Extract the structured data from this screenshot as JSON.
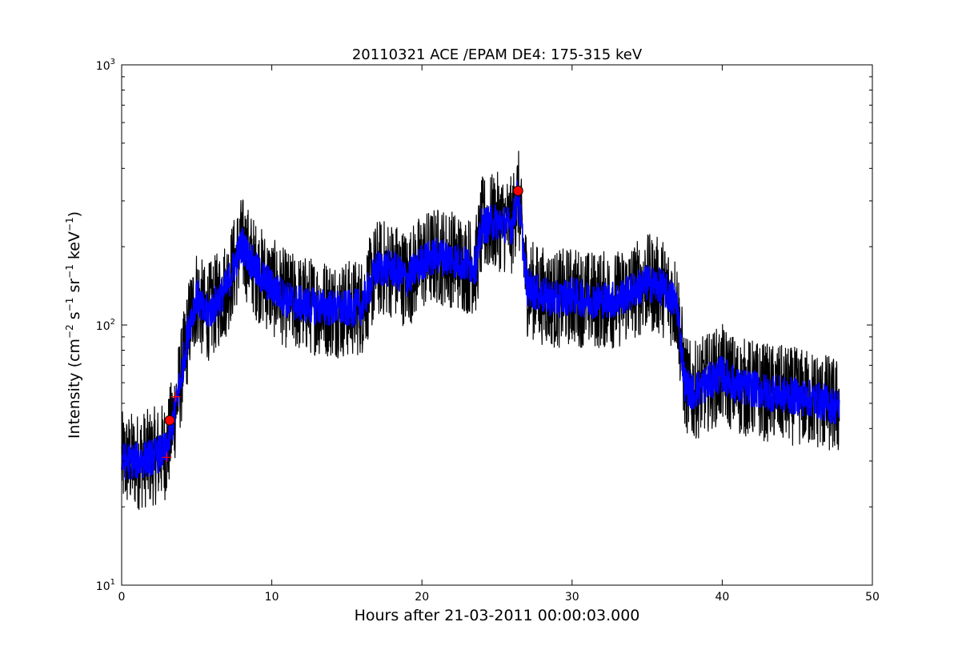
{
  "chart_data": {
    "type": "line",
    "title": "20110321 ACE /EPAM DE4: 175-315 keV",
    "xlabel": "Hours after 21-03-2011 00:00:03.000",
    "ylabel": {
      "prefix": "Intensity (cm",
      "sup1": "−2",
      "mid1": " s",
      "sup2": "−1",
      "mid2": " sr",
      "sup3": "−1",
      "mid3": " keV",
      "sup4": "−1",
      "suffix": ")"
    },
    "xlim": [
      0,
      50
    ],
    "ylim": [
      10,
      1000
    ],
    "yscale": "log",
    "grid": false,
    "x_ticks": [
      0,
      10,
      20,
      30,
      40,
      50
    ],
    "x_tick_labels": [
      "0",
      "10",
      "20",
      "30",
      "40",
      "50"
    ],
    "y_ticks": [
      10,
      100,
      1000
    ],
    "y_tick_labels": [
      {
        "base": "10",
        "exp": "1"
      },
      {
        "base": "10",
        "exp": "2"
      },
      {
        "base": "10",
        "exp": "3"
      }
    ],
    "series": [
      {
        "kind": "raw",
        "color": "#000000",
        "x": [
          0,
          1,
          2,
          3,
          3.5,
          4,
          4.5,
          5,
          5.5,
          6,
          7,
          8,
          9,
          10,
          11,
          12,
          13,
          14,
          15,
          16,
          17,
          18,
          19,
          20,
          21,
          22,
          23,
          23.6,
          24,
          25,
          26,
          26.4,
          27,
          28,
          29,
          30,
          31,
          32,
          33,
          34,
          35,
          36,
          37,
          37.5,
          38,
          39,
          40,
          41,
          42,
          43,
          44,
          45,
          46,
          47,
          47.8
        ],
        "y": [
          30,
          30,
          31,
          33,
          45,
          65,
          100,
          130,
          110,
          115,
          140,
          205,
          160,
          140,
          125,
          120,
          118,
          116,
          115,
          118,
          165,
          165,
          150,
          175,
          185,
          180,
          170,
          170,
          240,
          250,
          240,
          320,
          140,
          130,
          125,
          130,
          125,
          125,
          125,
          135,
          145,
          140,
          120,
          60,
          55,
          60,
          65,
          58,
          57,
          55,
          54,
          53,
          52,
          50,
          48
        ],
        "noise_factor": 1.55
      },
      {
        "kind": "smoothed",
        "color": "#0000ff",
        "x": [
          0,
          1,
          2,
          3,
          3.5,
          4,
          4.5,
          5,
          5.5,
          6,
          7,
          8,
          9,
          10,
          11,
          12,
          13,
          14,
          15,
          16,
          17,
          18,
          19,
          20,
          21,
          22,
          23,
          23.6,
          24,
          25,
          26,
          26.4,
          27,
          28,
          29,
          30,
          31,
          32,
          33,
          34,
          35,
          36,
          37,
          37.5,
          38,
          39,
          40,
          41,
          42,
          43,
          44,
          45,
          46,
          47,
          47.8
        ],
        "y": [
          30,
          30,
          31,
          33,
          45,
          65,
          100,
          130,
          110,
          115,
          140,
          205,
          160,
          140,
          125,
          120,
          118,
          116,
          115,
          118,
          165,
          165,
          150,
          175,
          185,
          180,
          170,
          170,
          240,
          250,
          240,
          320,
          140,
          130,
          125,
          130,
          125,
          125,
          125,
          135,
          145,
          140,
          120,
          60,
          55,
          60,
          65,
          58,
          57,
          55,
          54,
          53,
          52,
          50,
          48
        ],
        "noise_factor": 1.18
      }
    ],
    "markers": [
      {
        "shape": "circle",
        "color": "#ff0000",
        "x": 3.2,
        "y": 43
      },
      {
        "shape": "circle",
        "color": "#ff0000",
        "x": 26.4,
        "y": 328
      },
      {
        "shape": "plus",
        "color": "#ff0000",
        "x": 3.0,
        "y": 31
      },
      {
        "shape": "plus",
        "color": "#ff0000",
        "x": 3.6,
        "y": 53
      }
    ]
  }
}
